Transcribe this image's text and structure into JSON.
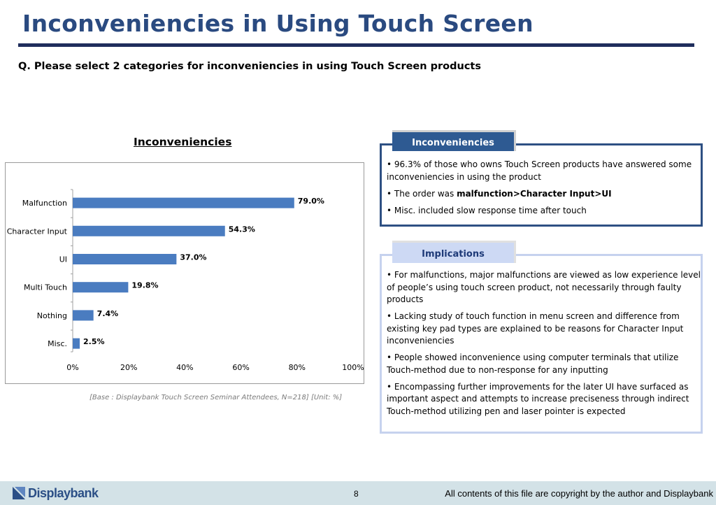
{
  "title": "Inconveniencies in Using Touch Screen",
  "question": "Q. Please select 2 categories for inconveniencies in using Touch Screen products",
  "chart_title": "Inconveniencies",
  "base_note": "[Base : Displaybank Touch Screen Seminar Attendees, N=218] [Unit: %]",
  "chart_data": {
    "type": "bar",
    "orientation": "horizontal",
    "categories": [
      "Malfunction",
      "Character Input",
      "UI",
      "Multi Touch",
      "Nothing",
      "Misc."
    ],
    "values": [
      79.0,
      54.3,
      37.0,
      19.8,
      7.4,
      2.5
    ],
    "value_labels": [
      "79.0%",
      "54.3%",
      "37.0%",
      "19.8%",
      "7.4%",
      "2.5%"
    ],
    "xlim": [
      0,
      100
    ],
    "x_ticks": [
      "0%",
      "20%",
      "40%",
      "60%",
      "80%",
      "100%"
    ],
    "bar_color": "#4a7cc0",
    "grid": false,
    "legend": "none"
  },
  "panel1": {
    "tab_label": "Inconveniencies",
    "bullets": [
      {
        "pre": "• 96.3% of those who owns Touch Screen products have answered some inconveniencies in using the product",
        "bold": "",
        "post": ""
      },
      {
        "pre": "• The order was ",
        "bold": "malfunction>Character Input>UI",
        "post": ""
      },
      {
        "pre": "• Misc. included slow response time after touch",
        "bold": "",
        "post": ""
      }
    ]
  },
  "panel2": {
    "tab_label": "Implications",
    "bullets": [
      "• For malfunctions, major malfunctions are viewed as low experience level of people’s using touch screen product, not necessarily through faulty products",
      "• Lacking study of touch function in menu screen and difference from existing key pad types are explained to be reasons for Character Input inconveniencies",
      "• People showed inconvenience using computer terminals that utilize Touch-method due to non-response for any inputting",
      "• Encompassing further improvements for the later UI have surfaced as important aspect and attempts to increase preciseness through indirect Touch-method utilizing pen and laser pointer is expected"
    ]
  },
  "footer": {
    "logo_text": "Displaybank",
    "page_number": "8",
    "copyright": "All contents of this file are copyright by the author and Displaybank"
  },
  "colors": {
    "title": "#2a4a80",
    "rule": "#1f2d5c",
    "bar": "#4a7cc0",
    "panel1_border": "#2e5083",
    "panel2_border": "#c6d2ee",
    "footer_bg": "#d3e2e7"
  }
}
